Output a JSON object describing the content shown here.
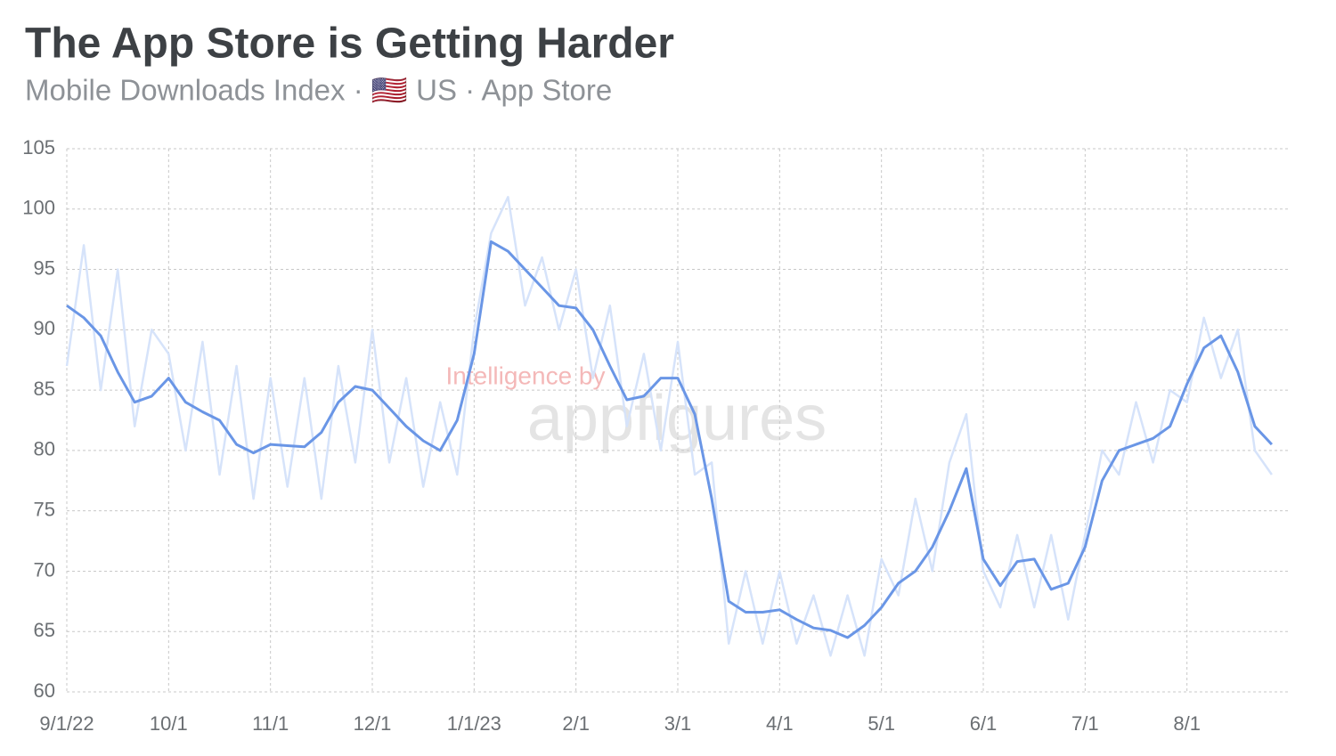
{
  "chart_data": {
    "type": "line",
    "title": "The App Store is Getting Harder",
    "subtitle": "Mobile Downloads Index · 🇺🇸 US · App Store",
    "watermark": [
      "Intelligence by",
      "appfigures"
    ],
    "categories": [
      "9/1/22",
      null,
      null,
      null,
      null,
      null,
      "10/1",
      null,
      null,
      null,
      null,
      null,
      "11/1",
      null,
      null,
      null,
      null,
      null,
      "12/1",
      null,
      null,
      null,
      null,
      null,
      "1/1/23",
      null,
      null,
      null,
      null,
      null,
      "2/1",
      null,
      null,
      null,
      null,
      null,
      "3/1",
      null,
      null,
      null,
      null,
      null,
      "4/1",
      null,
      null,
      null,
      null,
      null,
      "5/1",
      null,
      null,
      null,
      null,
      null,
      "6/1",
      null,
      null,
      null,
      null,
      null,
      "7/1",
      null,
      null,
      null,
      null,
      null,
      "8/1",
      null,
      null,
      null,
      null,
      null
    ],
    "series": [
      {
        "color": "#d6e3fa",
        "values": [
          87,
          97,
          85,
          95,
          82,
          90,
          88,
          80,
          89,
          78,
          87,
          76,
          86,
          77,
          86,
          76,
          87,
          79,
          90,
          79,
          86,
          77,
          84,
          78,
          90,
          98,
          101,
          92,
          96,
          90,
          95,
          86,
          92,
          82,
          88,
          80,
          89,
          78,
          79,
          64,
          70,
          64,
          70,
          64,
          68,
          63,
          68,
          63,
          71,
          68,
          76,
          70,
          79,
          83,
          70,
          67,
          73,
          67,
          73,
          66,
          73,
          80,
          78,
          84,
          79,
          85,
          84,
          91,
          86,
          90,
          80,
          78
        ]
      },
      {
        "color": "#6a96e6",
        "values": [
          92,
          91,
          89.5,
          86.5,
          84,
          84.5,
          86,
          84,
          83.2,
          82.5,
          80.5,
          79.8,
          80.5,
          80.4,
          80.3,
          81.5,
          84,
          85.3,
          85,
          83.5,
          82,
          80.8,
          80,
          82.5,
          88,
          97.3,
          96.5,
          95,
          93.5,
          92,
          91.8,
          90,
          87,
          84.2,
          84.5,
          86,
          86,
          83,
          76,
          67.5,
          66.6,
          66.6,
          66.8,
          66,
          65.3,
          65.1,
          64.5,
          65.5,
          67,
          69,
          70,
          72,
          75,
          78.5,
          71,
          68.8,
          70.8,
          71,
          68.5,
          69,
          72,
          77.5,
          80,
          80.5,
          81,
          82,
          85.5,
          88.5,
          89.5,
          86.5,
          82,
          80.5
        ]
      }
    ],
    "ylim": [
      60,
      105
    ],
    "yticks": [
      60,
      65,
      70,
      75,
      80,
      85,
      90,
      95,
      100,
      105
    ],
    "grid": true
  }
}
